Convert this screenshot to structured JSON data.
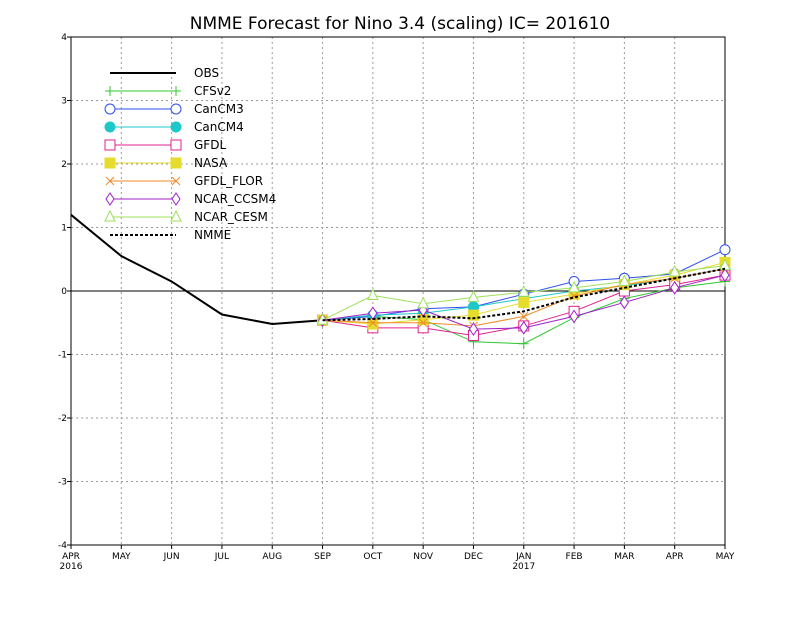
{
  "chart_data": {
    "type": "line",
    "title": "NMME Forecast for Nino 3.4 (scaling) IC= 201610",
    "xlabel": "",
    "ylabel": "",
    "ylim": [
      -4,
      4
    ],
    "yticks": [
      -4,
      -3,
      -2,
      -1,
      0,
      1,
      2,
      3,
      4
    ],
    "grid": true,
    "legend_position": "top-left",
    "x_months": [
      "APR",
      "MAY",
      "JUN",
      "JUL",
      "AUG",
      "SEP",
      "OCT",
      "NOV",
      "DEC",
      "JAN",
      "FEB",
      "MAR",
      "APR",
      "MAY"
    ],
    "x_years": [
      "2016",
      "",
      "",
      "",
      "",
      "",
      "",
      "",
      "",
      "2017",
      "",
      "",
      "",
      ""
    ],
    "series": [
      {
        "name": "OBS",
        "color": "#000000",
        "marker": "none",
        "width": 2,
        "dash": "",
        "values": [
          1.2,
          0.55,
          0.15,
          -0.37,
          -0.52,
          -0.46,
          null,
          null,
          null,
          null,
          null,
          null,
          null,
          null
        ]
      },
      {
        "name": "CFSv2",
        "color": "#2ec82e",
        "marker": "plus",
        "width": 1,
        "dash": "",
        "values": [
          null,
          null,
          null,
          null,
          null,
          -0.46,
          -0.4,
          -0.45,
          -0.8,
          -0.83,
          -0.42,
          -0.12,
          0.05,
          0.15
        ]
      },
      {
        "name": "CanCM3",
        "color": "#2e4ef0",
        "marker": "circle-open",
        "width": 1,
        "dash": "",
        "values": [
          null,
          null,
          null,
          null,
          null,
          -0.46,
          -0.4,
          -0.28,
          -0.25,
          -0.05,
          0.15,
          0.2,
          0.27,
          0.65
        ]
      },
      {
        "name": "CanCM4",
        "color": "#1ec8c8",
        "marker": "circle-filled",
        "width": 1,
        "dash": "",
        "values": [
          null,
          null,
          null,
          null,
          null,
          -0.46,
          -0.38,
          -0.35,
          -0.25,
          -0.12,
          0.0,
          0.08,
          0.2,
          0.35
        ]
      },
      {
        "name": "GFDL",
        "color": "#e0208c",
        "marker": "square-open",
        "width": 1,
        "dash": "",
        "values": [
          null,
          null,
          null,
          null,
          null,
          -0.46,
          -0.58,
          -0.58,
          -0.7,
          -0.55,
          -0.32,
          0.0,
          0.1,
          0.25
        ]
      },
      {
        "name": "NASA",
        "color": "#e6dc2e",
        "marker": "square-filled",
        "width": 1,
        "dash": "",
        "values": [
          null,
          null,
          null,
          null,
          null,
          -0.46,
          -0.52,
          -0.45,
          -0.38,
          -0.18,
          -0.05,
          0.1,
          0.25,
          0.45
        ]
      },
      {
        "name": "GFDL_FLOR",
        "color": "#f08a28",
        "marker": "x",
        "width": 1,
        "dash": "",
        "values": [
          null,
          null,
          null,
          null,
          null,
          -0.46,
          -0.5,
          -0.5,
          -0.55,
          -0.4,
          -0.08,
          0.1,
          0.2,
          0.35
        ]
      },
      {
        "name": "NCAR_CCSM4",
        "color": "#a020c8",
        "marker": "diamond-open",
        "width": 1,
        "dash": "",
        "values": [
          null,
          null,
          null,
          null,
          null,
          -0.46,
          -0.35,
          -0.3,
          -0.6,
          -0.58,
          -0.4,
          -0.18,
          0.05,
          0.25
        ]
      },
      {
        "name": "NCAR_CESM",
        "color": "#9ee05a",
        "marker": "triangle-open",
        "width": 1,
        "dash": "",
        "values": [
          null,
          null,
          null,
          null,
          null,
          -0.46,
          -0.07,
          -0.2,
          -0.1,
          -0.02,
          0.05,
          0.15,
          0.3,
          0.4
        ]
      },
      {
        "name": "NMME",
        "color": "#000000",
        "marker": "none",
        "width": 2,
        "dash": "3,2",
        "values": [
          null,
          null,
          null,
          null,
          null,
          -0.46,
          -0.44,
          -0.4,
          -0.43,
          -0.32,
          -0.1,
          0.05,
          0.2,
          0.35
        ]
      }
    ]
  }
}
